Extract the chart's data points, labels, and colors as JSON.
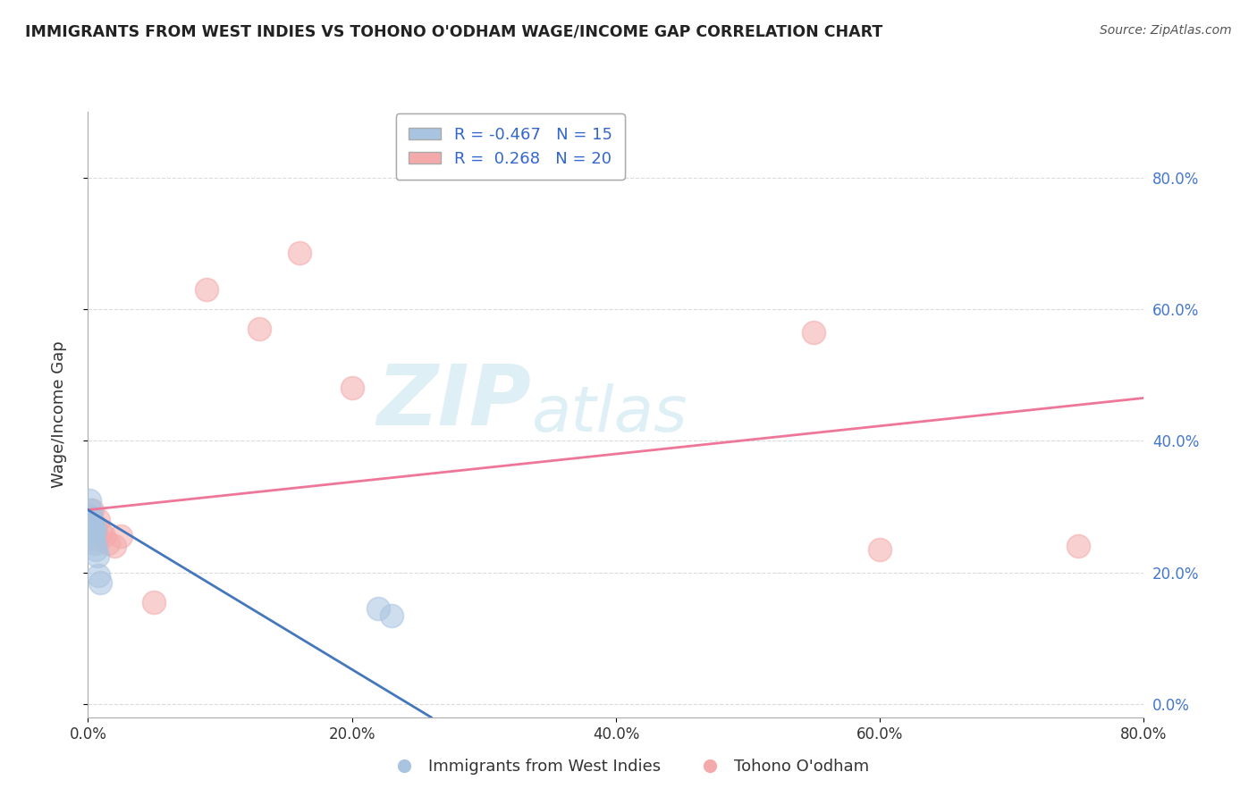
{
  "title": "IMMIGRANTS FROM WEST INDIES VS TOHONO O'ODHAM WAGE/INCOME GAP CORRELATION CHART",
  "source": "Source: ZipAtlas.com",
  "xlabel": "",
  "ylabel": "Wage/Income Gap",
  "xlim": [
    0,
    0.8
  ],
  "ylim": [
    -0.02,
    0.9
  ],
  "ytick_vals": [
    0.0,
    0.2,
    0.4,
    0.6,
    0.8
  ],
  "xtick_vals": [
    0.0,
    0.2,
    0.4,
    0.6,
    0.8
  ],
  "blue_R": -0.467,
  "blue_N": 15,
  "pink_R": 0.268,
  "pink_N": 20,
  "blue_label": "Immigrants from West Indies",
  "pink_label": "Tohono O'odham",
  "blue_color": "#A8C4E0",
  "pink_color": "#F4AAAA",
  "blue_line_color": "#4477BB",
  "pink_line_color": "#EE7799",
  "background_color": "#FFFFFF",
  "grid_color": "#CCCCCC",
  "watermark_zip": "ZIP",
  "watermark_atlas": "atlas",
  "blue_x": [
    0.001,
    0.002,
    0.002,
    0.003,
    0.003,
    0.004,
    0.004,
    0.005,
    0.005,
    0.006,
    0.007,
    0.008,
    0.009,
    0.22,
    0.23
  ],
  "blue_y": [
    0.31,
    0.295,
    0.285,
    0.275,
    0.26,
    0.27,
    0.255,
    0.265,
    0.245,
    0.235,
    0.225,
    0.195,
    0.185,
    0.145,
    0.135
  ],
  "pink_x": [
    0.002,
    0.003,
    0.004,
    0.005,
    0.006,
    0.007,
    0.008,
    0.01,
    0.012,
    0.015,
    0.02,
    0.025,
    0.05,
    0.09,
    0.13,
    0.16,
    0.2,
    0.55,
    0.6,
    0.75
  ],
  "pink_y": [
    0.285,
    0.295,
    0.275,
    0.27,
    0.265,
    0.25,
    0.28,
    0.26,
    0.255,
    0.245,
    0.24,
    0.255,
    0.155,
    0.63,
    0.57,
    0.685,
    0.48,
    0.565,
    0.235,
    0.24
  ],
  "pink_line_x0": 0.0,
  "pink_line_y0": 0.295,
  "pink_line_x1": 0.8,
  "pink_line_y1": 0.465,
  "blue_line_x0": 0.0,
  "blue_line_y0": 0.295,
  "blue_line_x1": 0.26,
  "blue_line_y1": -0.02
}
